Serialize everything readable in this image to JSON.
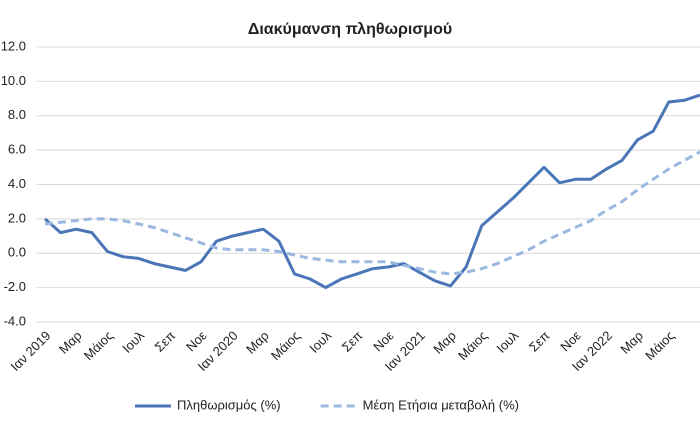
{
  "chart_data": {
    "type": "line",
    "title": "Διακύμανση  πληθωρισμού",
    "categories": [
      "Ιαν 2019",
      null,
      "Μαρ",
      null,
      "Μάιος",
      null,
      "Ιουλ",
      null,
      "Σεπ",
      null,
      "Νοε",
      null,
      "Ιαν 2020",
      null,
      "Μαρ",
      null,
      "Μάιος",
      null,
      "Ιουλ",
      null,
      "Σεπ",
      null,
      "Νοε",
      null,
      "Ιαν 2021",
      null,
      "Μαρ",
      null,
      "Μάιος",
      null,
      "Ιουλ",
      null,
      "Σεπ",
      null,
      "Νοε",
      null,
      "Ιαν 2022",
      null,
      "Μαρ",
      null,
      "Μάιος",
      null,
      null
    ],
    "series": [
      {
        "name": "Πληθωρισμός (%)",
        "color": "#4a76b8",
        "dash": false,
        "values": [
          2.0,
          1.2,
          1.4,
          1.2,
          0.1,
          -0.2,
          -0.3,
          -0.6,
          -0.8,
          -1.0,
          -0.5,
          0.7,
          1.0,
          1.2,
          1.4,
          0.7,
          -1.2,
          -1.5,
          -2.0,
          -1.5,
          -1.2,
          -0.9,
          -0.8,
          -0.6,
          -1.1,
          -1.6,
          -1.9,
          -0.8,
          1.6,
          2.4,
          3.2,
          4.1,
          5.0,
          4.1,
          4.3,
          4.3,
          4.9,
          5.4,
          6.6,
          7.1,
          8.8,
          8.9,
          9.2
        ]
      },
      {
        "name": "Μέση Ετήσια μεταβολή (%)",
        "color": "#9bb9e0",
        "dash": true,
        "values": [
          1.7,
          1.8,
          1.9,
          2.0,
          2.0,
          1.9,
          1.7,
          1.5,
          1.2,
          0.9,
          0.6,
          0.3,
          0.2,
          0.2,
          0.2,
          0.1,
          -0.1,
          -0.3,
          -0.4,
          -0.5,
          -0.5,
          -0.5,
          -0.5,
          -0.7,
          -0.9,
          -1.1,
          -1.2,
          -1.1,
          -0.9,
          -0.6,
          -0.2,
          0.2,
          0.7,
          1.1,
          1.5,
          1.9,
          2.5,
          3.0,
          3.7,
          4.3,
          4.9,
          5.4,
          5.9
        ]
      }
    ],
    "ylim": [
      -4,
      12
    ],
    "yticks": [
      {
        "value": 12,
        "label": "12.0"
      },
      {
        "value": 10,
        "label": "10.0"
      },
      {
        "value": 8,
        "label": "8.0"
      },
      {
        "value": 6,
        "label": "6.0"
      },
      {
        "value": 4,
        "label": "4.0"
      },
      {
        "value": 2,
        "label": "2.0"
      },
      {
        "value": 0,
        "label": "0.0"
      },
      {
        "value": -2,
        "label": "-2.0"
      },
      {
        "value": -4,
        "label": "-4.0"
      }
    ],
    "grid": true,
    "legend": "bottom"
  }
}
